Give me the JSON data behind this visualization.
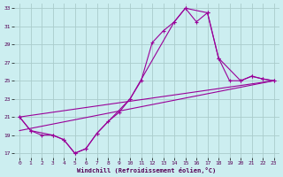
{
  "xlabel": "Windchill (Refroidissement éolien,°C)",
  "background_color": "#cceef0",
  "grid_color": "#aacccc",
  "line_color": "#990099",
  "xlim": [
    -0.5,
    23.5
  ],
  "ylim": [
    16.5,
    33.5
  ],
  "yticks": [
    17,
    19,
    21,
    23,
    25,
    27,
    29,
    31,
    33
  ],
  "xticks": [
    0,
    1,
    2,
    3,
    4,
    5,
    6,
    7,
    8,
    9,
    10,
    11,
    12,
    13,
    14,
    15,
    16,
    17,
    18,
    19,
    20,
    21,
    22,
    23
  ],
  "series1_x": [
    0,
    1,
    2,
    3,
    4,
    5,
    6,
    7,
    8,
    9,
    10,
    11,
    12,
    13,
    14,
    15,
    16,
    17,
    18,
    19,
    20,
    21,
    22,
    23
  ],
  "series1_y": [
    21,
    19.5,
    19,
    19,
    18.5,
    17,
    17.5,
    19.2,
    20.5,
    21.5,
    23,
    25,
    29.2,
    30.5,
    31.5,
    33,
    31.5,
    32.5,
    27.5,
    25,
    25,
    25.5,
    25.2,
    25
  ],
  "series2_x": [
    0,
    1,
    3,
    4,
    5,
    6,
    7,
    10,
    14,
    15,
    17,
    18,
    20,
    21,
    22,
    23
  ],
  "series2_y": [
    21,
    19.5,
    19,
    18.5,
    17,
    17.5,
    19.2,
    23,
    31.5,
    33,
    32.5,
    27.5,
    25,
    25.5,
    25.2,
    25
  ],
  "series3_x": [
    0,
    23
  ],
  "series3_y": [
    19.5,
    25
  ],
  "series4_x": [
    0,
    23
  ],
  "series4_y": [
    21,
    25
  ]
}
